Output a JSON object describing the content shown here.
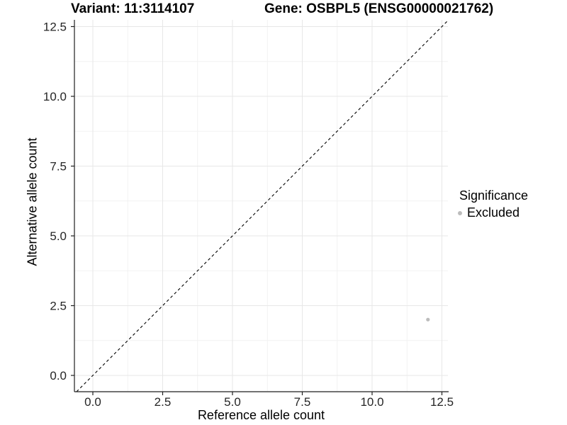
{
  "chart_data": {
    "type": "scatter",
    "title_variant": "Variant: 11:3114107",
    "title_gene": "Gene: OSBPL5 (ENSG00000021762)",
    "xlabel": "Reference allele count",
    "ylabel": "Alternative allele count",
    "xlim": [
      -0.65,
      13.15
    ],
    "ylim": [
      -0.65,
      13.15
    ],
    "xticks": {
      "values": [
        0,
        2.5,
        5,
        7.5,
        10,
        12.5
      ],
      "labels": [
        "0.0",
        "2.5",
        "5.0",
        "7.5",
        "10.0",
        "12.5"
      ]
    },
    "yticks": {
      "values": [
        0,
        2.5,
        5,
        7.5,
        10,
        12.5
      ],
      "labels": [
        "0.0",
        "2.5",
        "5.0",
        "7.5",
        "10.0",
        "12.5"
      ]
    },
    "minor_tick_values": [
      1.25,
      3.75,
      6.25,
      8.75,
      11.25
    ],
    "grid": "major+minor",
    "reference_line": {
      "slope": 1,
      "intercept": 0,
      "linetype": "dashed",
      "color": "#000000"
    },
    "series": [
      {
        "name": "Excluded",
        "color": "#bcbcbc",
        "points": [
          {
            "x": 12,
            "y": 2
          }
        ]
      }
    ],
    "legend": {
      "title": "Significance",
      "position": "right",
      "items": [
        {
          "label": "Excluded",
          "color": "#bcbcbc"
        }
      ]
    },
    "style": {
      "background": "#ffffff",
      "grid_major_color": "#e7e7e7",
      "grid_minor_color": "#f2f2f2",
      "axis_line_color": "#1f1f1f",
      "tick_label_color": "#262626"
    }
  }
}
